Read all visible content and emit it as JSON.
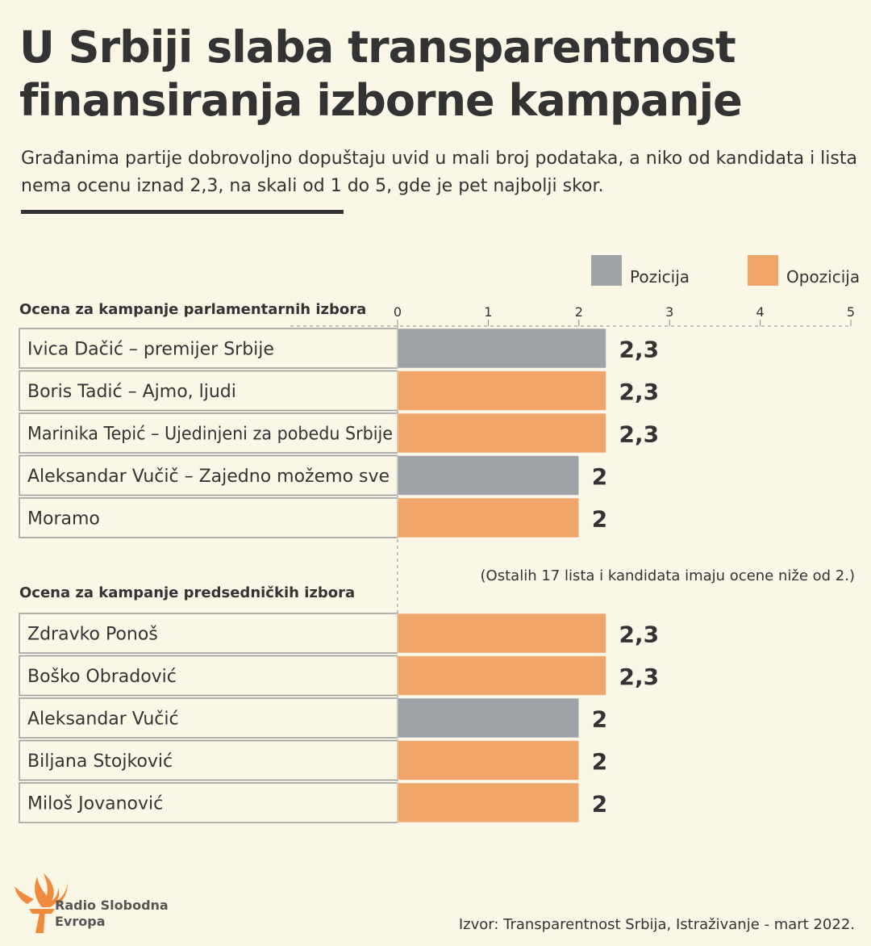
{
  "title": "U Srbiji slaba transparentnost finansiranja izborne kampanje",
  "subtitle": "Građanima partije dobrovoljno dopuštaju uvid u mali broj podataka, a niko od kandidata i lista nema ocenu iznad 2,3, na skali od 1 do 5, gde je pet najbolji skor.",
  "legend": {
    "pozicija": "Pozicija",
    "opozicija": "Opozicija"
  },
  "colors": {
    "pozicija": "#9ea3a8",
    "opozicija": "#f0a56b",
    "text": "#333333",
    "background": "#fbf7e6"
  },
  "note": "(Ostalih 17 lista i kandidata imaju ocene niže od 2.)",
  "source": "Izvor: Transparentnost Srbija, Istraživanje - mart 2022.",
  "logo": {
    "icon": "flame-torch-icon",
    "text": "Radio Slobodna Evropa"
  },
  "chart_data": {
    "type": "bar",
    "orientation": "horizontal",
    "xlim": [
      0,
      5
    ],
    "x_ticks": [
      0,
      1,
      2,
      3,
      4,
      5
    ],
    "grid": "dashed top axis line",
    "legend_position": "top-right",
    "groups": [
      {
        "heading": "Ocena za kampanje parlamentarnih izbora",
        "rows": [
          {
            "label": "Ivica Dačić – premijer Srbije",
            "value": 2.3,
            "value_label": "2,3",
            "category": "pozicija"
          },
          {
            "label": "Boris Tadić – Ajmo, ljudi",
            "value": 2.3,
            "value_label": "2,3",
            "category": "opozicija"
          },
          {
            "label": "Marinika Tepić – Ujedinjeni za pobedu Srbije",
            "value": 2.3,
            "value_label": "2,3",
            "category": "opozicija"
          },
          {
            "label": "Aleksandar Vučič – Zajedno možemo sve",
            "value": 2,
            "value_label": "2",
            "category": "pozicija"
          },
          {
            "label": "Moramo",
            "value": 2,
            "value_label": "2",
            "category": "opozicija"
          }
        ]
      },
      {
        "heading": "Ocena za kampanje predsedničkih izbora",
        "rows": [
          {
            "label": "Zdravko Ponoš",
            "value": 2.3,
            "value_label": "2,3",
            "category": "opozicija"
          },
          {
            "label": "Boško Obradović",
            "value": 2.3,
            "value_label": "2,3",
            "category": "opozicija"
          },
          {
            "label": "Aleksandar Vučić",
            "value": 2,
            "value_label": "2",
            "category": "pozicija"
          },
          {
            "label": "Biljana Stojković",
            "value": 2,
            "value_label": "2",
            "category": "opozicija"
          },
          {
            "label": "Miloš Jovanović",
            "value": 2,
            "value_label": "2",
            "category": "opozicija"
          }
        ]
      }
    ]
  }
}
